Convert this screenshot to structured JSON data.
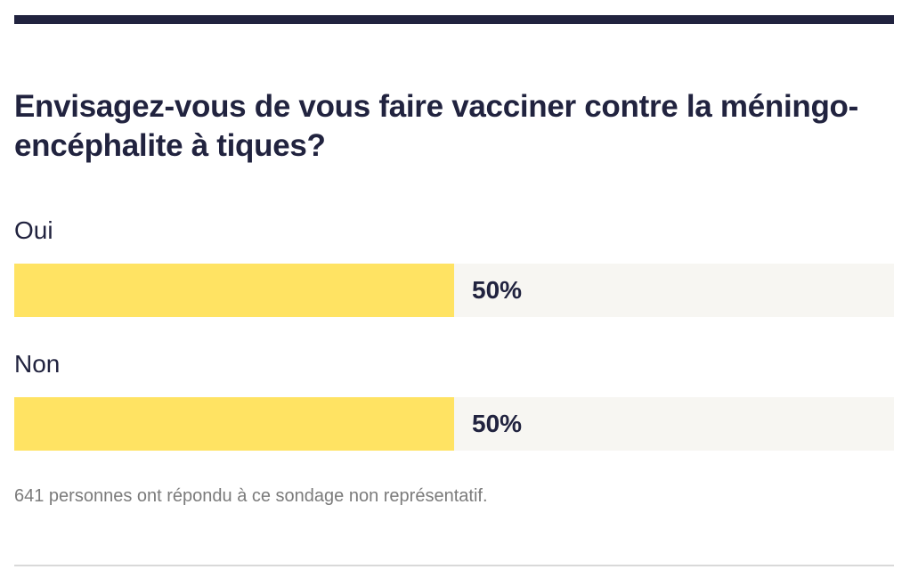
{
  "poll": {
    "question": "Envisagez-vous de vous faire vacciner contre la méningo-encéphalite à tiques?",
    "footnote": "641 personnes ont répondu à ce sondage non représentatif."
  },
  "colors": {
    "title": "#21233f",
    "bar_fill": "#ffe363",
    "bar_track": "#f7f6f2",
    "footnote": "#7b7b7b",
    "top_rule": "#21233f",
    "bottom_rule": "#d9d9d9"
  },
  "chart_data": {
    "type": "bar",
    "orientation": "horizontal",
    "title": "Envisagez-vous de vous faire vacciner contre la méningo-encéphalite à tiques?",
    "categories": [
      "Oui",
      "Non"
    ],
    "values": [
      50,
      50
    ],
    "value_labels": [
      "50%",
      "50%"
    ],
    "unit": "%",
    "xlim": [
      0,
      100
    ],
    "grid": false,
    "legend": "none"
  }
}
